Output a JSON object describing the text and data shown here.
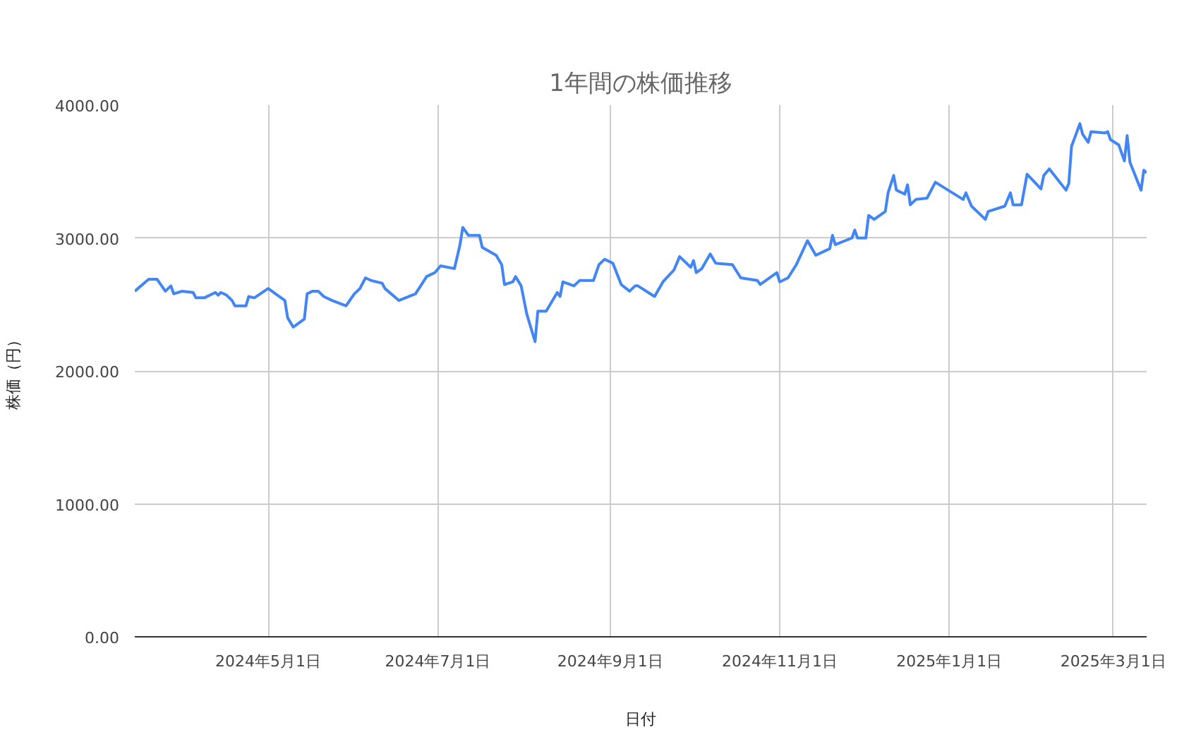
{
  "chart_data": {
    "type": "line",
    "title": "1年間の株価推移",
    "xlabel": "日付",
    "ylabel": "株価（円）",
    "xlim": [
      "2024-03-14",
      "2025-03-13"
    ],
    "xticks": [
      {
        "value": "2024-05-01",
        "label": "2024年5月1日"
      },
      {
        "value": "2024-07-01",
        "label": "2024年7月1日"
      },
      {
        "value": "2024-09-01",
        "label": "2024年9月1日"
      },
      {
        "value": "2024-11-01",
        "label": "2024年11月1日"
      },
      {
        "value": "2025-01-01",
        "label": "2025年1月1日"
      },
      {
        "value": "2025-03-01",
        "label": "2025年3月1日"
      }
    ],
    "ylim": [
      0,
      4000
    ],
    "yticks": [
      {
        "value": 0,
        "label": "0.00"
      },
      {
        "value": 1000,
        "label": "1000.00"
      },
      {
        "value": 2000,
        "label": "2000.00"
      },
      {
        "value": 3000,
        "label": "3000.00"
      },
      {
        "value": 4000,
        "label": "4000.00"
      }
    ],
    "grid": true,
    "x": [
      "2024-03-14",
      "2024-03-19",
      "2024-03-22",
      "2024-03-25",
      "2024-03-27",
      "2024-03-28",
      "2024-03-31",
      "2024-04-04",
      "2024-04-05",
      "2024-04-08",
      "2024-04-12",
      "2024-04-13",
      "2024-04-14",
      "2024-04-16",
      "2024-04-18",
      "2024-04-19",
      "2024-04-23",
      "2024-04-24",
      "2024-04-26",
      "2024-05-01",
      "2024-05-07",
      "2024-05-08",
      "2024-05-10",
      "2024-05-14",
      "2024-05-15",
      "2024-05-17",
      "2024-05-19",
      "2024-05-21",
      "2024-05-24",
      "2024-05-29",
      "2024-06-01",
      "2024-06-03",
      "2024-06-05",
      "2024-06-07",
      "2024-06-11",
      "2024-06-12",
      "2024-06-17",
      "2024-06-23",
      "2024-06-27",
      "2024-06-30",
      "2024-07-02",
      "2024-07-07",
      "2024-07-09",
      "2024-07-10",
      "2024-07-12",
      "2024-07-16",
      "2024-07-17",
      "2024-07-22",
      "2024-07-24",
      "2024-07-25",
      "2024-07-28",
      "2024-07-29",
      "2024-07-31",
      "2024-08-02",
      "2024-08-05",
      "2024-08-06",
      "2024-08-09",
      "2024-08-13",
      "2024-08-14",
      "2024-08-15",
      "2024-08-19",
      "2024-08-21",
      "2024-08-26",
      "2024-08-28",
      "2024-08-30",
      "2024-09-02",
      "2024-09-05",
      "2024-09-08",
      "2024-09-10",
      "2024-09-11",
      "2024-09-17",
      "2024-09-20",
      "2024-09-24",
      "2024-09-26",
      "2024-09-30",
      "2024-10-01",
      "2024-10-02",
      "2024-10-04",
      "2024-10-07",
      "2024-10-09",
      "2024-10-15",
      "2024-10-18",
      "2024-10-24",
      "2024-10-25",
      "2024-10-31",
      "2024-11-01",
      "2024-11-04",
      "2024-11-07",
      "2024-11-11",
      "2024-11-14",
      "2024-11-19",
      "2024-11-20",
      "2024-11-21",
      "2024-11-27",
      "2024-11-28",
      "2024-11-29",
      "2024-12-02",
      "2024-12-03",
      "2024-12-05",
      "2024-12-09",
      "2024-12-10",
      "2024-12-12",
      "2024-12-13",
      "2024-12-16",
      "2024-12-17",
      "2024-12-18",
      "2024-12-20",
      "2024-12-24",
      "2024-12-27",
      "2025-01-06",
      "2025-01-07",
      "2025-01-09",
      "2025-01-14",
      "2025-01-15",
      "2025-01-21",
      "2025-01-23",
      "2025-01-24",
      "2025-01-27",
      "2025-01-29",
      "2025-02-03",
      "2025-02-04",
      "2025-02-06",
      "2025-02-12",
      "2025-02-13",
      "2025-02-14",
      "2025-02-17",
      "2025-02-18",
      "2025-02-20",
      "2025-02-21",
      "2025-02-26",
      "2025-02-27",
      "2025-02-28",
      "2025-03-03",
      "2025-03-05",
      "2025-03-06",
      "2025-03-07",
      "2025-03-11",
      "2025-03-12",
      "2025-03-13"
    ],
    "series": [
      {
        "color": "#4285f4",
        "values": [
          2600,
          2690,
          2690,
          2600,
          2640,
          2580,
          2600,
          2590,
          2550,
          2550,
          2590,
          2570,
          2590,
          2570,
          2530,
          2490,
          2490,
          2560,
          2550,
          2620,
          2530,
          2400,
          2330,
          2390,
          2580,
          2600,
          2600,
          2560,
          2530,
          2490,
          2580,
          2620,
          2700,
          2680,
          2660,
          2620,
          2530,
          2580,
          2710,
          2740,
          2790,
          2770,
          2950,
          3080,
          3020,
          3020,
          2930,
          2870,
          2800,
          2650,
          2670,
          2710,
          2640,
          2430,
          2220,
          2450,
          2450,
          2590,
          2560,
          2670,
          2640,
          2680,
          2680,
          2800,
          2840,
          2810,
          2650,
          2600,
          2640,
          2640,
          2560,
          2670,
          2760,
          2860,
          2780,
          2830,
          2740,
          2770,
          2880,
          2810,
          2800,
          2700,
          2680,
          2650,
          2740,
          2670,
          2700,
          2800,
          2980,
          2870,
          2920,
          3020,
          2950,
          3000,
          3060,
          3000,
          3000,
          3170,
          3140,
          3200,
          3340,
          3470,
          3360,
          3330,
          3400,
          3250,
          3290,
          3300,
          3420,
          3290,
          3340,
          3240,
          3140,
          3200,
          3240,
          3340,
          3250,
          3250,
          3480,
          3370,
          3470,
          3520,
          3360,
          3410,
          3690,
          3860,
          3780,
          3720,
          3800,
          3790,
          3800,
          3740,
          3700,
          3580,
          3770,
          3570,
          3360,
          3510,
          3490
        ]
      }
    ]
  }
}
